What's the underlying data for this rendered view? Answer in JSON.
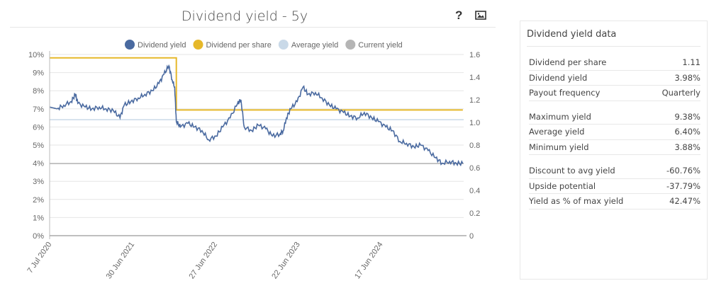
{
  "chart_data": {
    "type": "line",
    "title": "Dividend yield - 5y",
    "legend": [
      "Dividend yield",
      "Dividend per share",
      "Average yield",
      "Current yield"
    ],
    "legend_placement": "top",
    "colors": {
      "yield": "#4a6aa0",
      "dps": "#e6b82a",
      "avg": "#c9d9e8",
      "current": "#b5b5b5"
    },
    "y_left": {
      "ticks": [
        "0%",
        "1%",
        "2%",
        "3%",
        "4%",
        "5%",
        "6%",
        "7%",
        "8%",
        "9%",
        "10%"
      ],
      "range": [
        0,
        10
      ]
    },
    "y_right": {
      "ticks": [
        "0",
        "0.2",
        "0.4",
        "0.6",
        "0.8",
        "1.0",
        "1.2",
        "1.4",
        "1.6"
      ],
      "range": [
        0,
        1.6
      ]
    },
    "x_ticks": [
      "7 Jul 2020",
      "30 Jun 2021",
      "27 Jun 2022",
      "22 Jun 2023",
      "17 Jun 2024"
    ],
    "x_range_years": [
      0,
      5
    ],
    "yield_series": {
      "x_years": [
        0,
        0.09,
        0.17,
        0.26,
        0.31,
        0.34,
        0.43,
        0.51,
        0.6,
        0.68,
        0.77,
        0.85,
        0.9,
        0.98,
        1.07,
        1.15,
        1.24,
        1.32,
        1.38,
        1.44,
        1.48,
        1.51,
        1.53,
        1.58,
        1.67,
        1.75,
        1.84,
        1.92,
        2.01,
        2.09,
        2.18,
        2.27,
        2.31,
        2.35,
        2.44,
        2.52,
        2.61,
        2.69,
        2.78,
        2.82,
        2.86,
        2.91,
        2.99,
        3.06,
        3.12,
        3.21,
        3.29,
        3.38,
        3.46,
        3.55,
        3.63,
        3.72,
        3.8,
        3.89,
        3.97,
        4.06,
        4.14,
        4.23,
        4.31,
        4.4,
        4.48,
        4.57,
        4.66,
        4.74,
        4.83,
        4.91,
        4.99
      ],
      "values": [
        7.1,
        7.0,
        7.2,
        7.4,
        7.8,
        7.3,
        7.1,
        7.0,
        7.1,
        7.0,
        6.9,
        6.5,
        7.2,
        7.4,
        7.6,
        7.8,
        8.0,
        8.4,
        8.9,
        9.38,
        8.6,
        8.2,
        6.3,
        6.0,
        6.2,
        6.0,
        5.8,
        5.3,
        5.5,
        6.0,
        6.5,
        7.3,
        7.5,
        6.0,
        5.8,
        6.1,
        5.9,
        5.5,
        5.6,
        5.8,
        6.5,
        7.0,
        7.4,
        8.2,
        7.8,
        7.9,
        7.6,
        7.2,
        7.0,
        6.8,
        6.6,
        6.5,
        6.8,
        6.5,
        6.3,
        6.0,
        5.8,
        5.2,
        5.1,
        4.9,
        5.0,
        4.7,
        4.3,
        4.0,
        4.1,
        4.0,
        3.98
      ]
    },
    "dps_series": {
      "x_years": [
        0,
        1.53,
        1.53,
        4.99
      ],
      "values": [
        1.57,
        1.57,
        1.11,
        1.11
      ]
    },
    "average_yield": 6.4,
    "current_yield": 3.98
  },
  "header": {
    "help_icon": "question-icon",
    "image_icon": "image-export-icon"
  },
  "panel": {
    "title": "Dividend yield data",
    "groups": [
      [
        {
          "label": "Dividend per share",
          "value": "1.11"
        },
        {
          "label": "Dividend yield",
          "value": "3.98%"
        },
        {
          "label": "Payout frequency",
          "value": "Quarterly"
        }
      ],
      [
        {
          "label": "Maximum yield",
          "value": "9.38%"
        },
        {
          "label": "Average yield",
          "value": "6.40%"
        },
        {
          "label": "Minimum yield",
          "value": "3.88%"
        }
      ],
      [
        {
          "label": "Discount to avg yield",
          "value": "-60.76%"
        },
        {
          "label": "Upside potential",
          "value": "-37.79%"
        },
        {
          "label": "Yield as % of max yield",
          "value": "42.47%"
        }
      ]
    ]
  }
}
